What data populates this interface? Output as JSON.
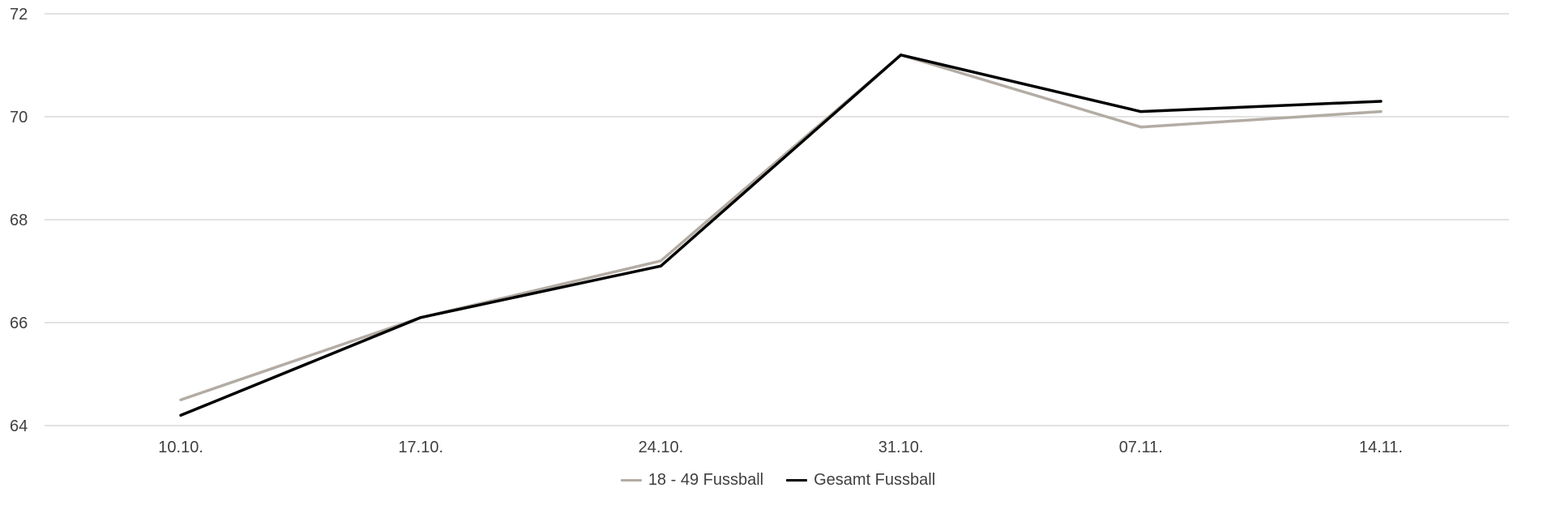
{
  "chart_data": {
    "type": "line",
    "title": "",
    "categories": [
      "10.10.",
      "17.10.",
      "24.10.",
      "31.10.",
      "07.11.",
      "14.11."
    ],
    "series": [
      {
        "name": "18 - 49 Fussball",
        "color": "#b3aca4",
        "values": [
          64.5,
          66.1,
          67.2,
          71.2,
          69.8,
          70.1
        ]
      },
      {
        "name": "Gesamt Fussball",
        "color": "#000000",
        "values": [
          64.2,
          66.1,
          67.1,
          71.2,
          70.1,
          70.3
        ]
      }
    ],
    "ylim": [
      64,
      72
    ],
    "yticks": [
      72,
      70,
      68,
      66,
      64
    ],
    "grid": true,
    "legend_position": "bottom",
    "xlabel": "",
    "ylabel": ""
  },
  "colors": {
    "background": "#ffffff",
    "gridline": "#d9d9d9",
    "axis_text": "#404040"
  }
}
